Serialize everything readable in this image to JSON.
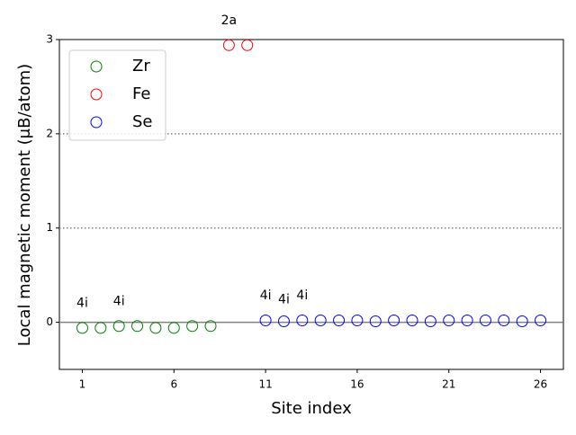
{
  "chart_data": {
    "type": "scatter",
    "xlabel": "Site index",
    "ylabel": "Local magnetic moment (μB/atom)",
    "xlim": [
      -0.25,
      27.25
    ],
    "xticks": [
      1,
      6,
      11,
      16,
      21,
      26
    ],
    "ylim": [
      -0.5,
      3
    ],
    "yticks": [
      0,
      1,
      2,
      3
    ],
    "legend": "upper left",
    "hlines": [
      {
        "value": 0,
        "style": "solid"
      },
      {
        "value": 1,
        "style": "dotted"
      },
      {
        "value": 2,
        "style": "dotted"
      }
    ],
    "series": [
      {
        "name": "Zr",
        "color": "#008000",
        "x": [
          1,
          2,
          3,
          4,
          5,
          6,
          7,
          8
        ],
        "values": [
          -0.06,
          -0.06,
          -0.04,
          -0.04,
          -0.06,
          -0.06,
          -0.04,
          -0.04
        ]
      },
      {
        "name": "Fe",
        "color": "#ff0000",
        "x": [
          9,
          10
        ],
        "values": [
          2.94,
          2.94
        ]
      },
      {
        "name": "Se",
        "color": "#0000ff",
        "x": [
          11,
          12,
          13,
          14,
          15,
          16,
          17,
          18,
          19,
          20,
          21,
          22,
          23,
          24,
          25,
          26
        ],
        "values": [
          0.02,
          0.01,
          0.02,
          0.02,
          0.02,
          0.02,
          0.01,
          0.02,
          0.02,
          0.01,
          0.02,
          0.02,
          0.02,
          0.02,
          0.01,
          0.02
        ]
      }
    ],
    "annotations": [
      {
        "text": "4i",
        "x": 1,
        "y": 0.2
      },
      {
        "text": "4i",
        "x": 3,
        "y": 0.22
      },
      {
        "text": "2a",
        "x": 9,
        "y": 3.2
      },
      {
        "text": "4i",
        "x": 11,
        "y": 0.28
      },
      {
        "text": "4i",
        "x": 12,
        "y": 0.24
      },
      {
        "text": "4i",
        "x": 13,
        "y": 0.28
      }
    ]
  }
}
